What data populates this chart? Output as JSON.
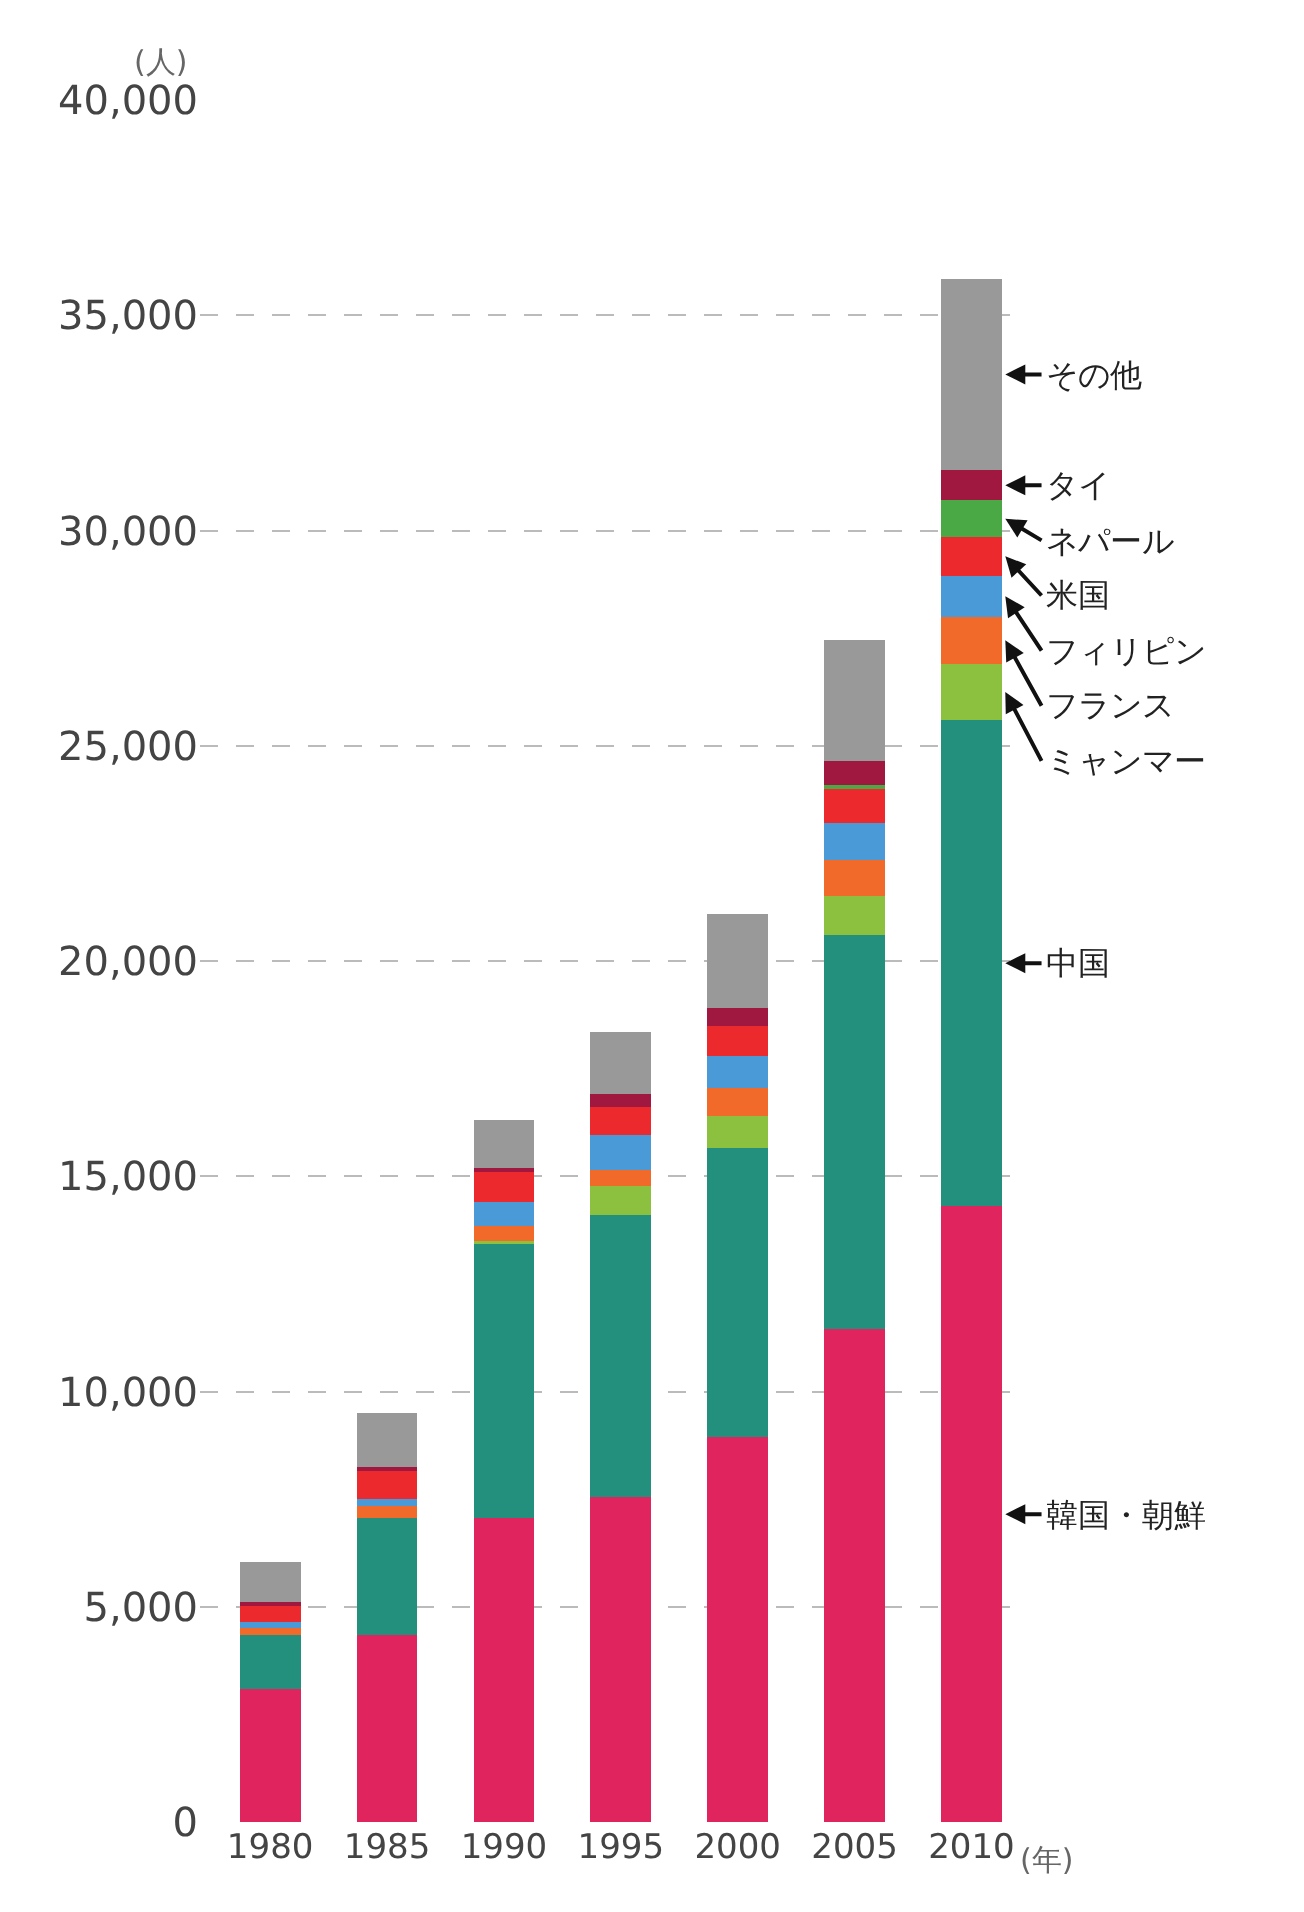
{
  "chart_data": {
    "type": "bar",
    "stacked": true,
    "ylabel": "(人)",
    "xlabel": "(年)",
    "categories": [
      "1980",
      "1985",
      "1990",
      "1995",
      "2000",
      "2005",
      "2010"
    ],
    "series": [
      {
        "name": "韓国・朝鮮",
        "color": "#e0245e",
        "values": [
          3100,
          4350,
          7060,
          7550,
          8950,
          11450,
          14300
        ]
      },
      {
        "name": "中国",
        "color": "#23907e",
        "values": [
          1250,
          2720,
          6380,
          6550,
          6700,
          9150,
          11300
        ]
      },
      {
        "name": "ミャンマー",
        "color": "#8cc13f",
        "values": [
          0,
          0,
          60,
          670,
          750,
          900,
          1300
        ]
      },
      {
        "name": "フランス",
        "color": "#f26a2a",
        "values": [
          150,
          260,
          350,
          380,
          650,
          850,
          1100
        ]
      },
      {
        "name": "フィリピン",
        "color": "#4a9ad8",
        "values": [
          150,
          170,
          550,
          800,
          750,
          850,
          950
        ]
      },
      {
        "name": "米国",
        "color": "#ec2a2e",
        "values": [
          400,
          650,
          700,
          650,
          700,
          800,
          900
        ]
      },
      {
        "name": "ネパール",
        "color": "#4aa845",
        "values": [
          0,
          0,
          0,
          0,
          0,
          100,
          850
        ]
      },
      {
        "name": "タイ",
        "color": "#a0183f",
        "values": [
          50,
          100,
          100,
          300,
          400,
          550,
          700
        ]
      },
      {
        "name": "その他",
        "color": "#999999",
        "values": [
          950,
          1250,
          1100,
          1450,
          2200,
          2800,
          4450
        ]
      }
    ],
    "ylim": [
      0,
      40000
    ],
    "yticks": [
      0,
      {
        "value": 5000,
        "label": "5,000"
      },
      {
        "value": 10000,
        "label": "10,000"
      },
      {
        "value": 15000,
        "label": "15,000"
      },
      {
        "value": 20000,
        "label": "20,000"
      },
      {
        "value": 25000,
        "label": "25,000"
      },
      {
        "value": 30000,
        "label": "30,000"
      },
      {
        "value": 35000,
        "label": "35,000"
      },
      {
        "value": 40000,
        "label": "40,000"
      }
    ],
    "grid": "y",
    "legend": false
  }
}
